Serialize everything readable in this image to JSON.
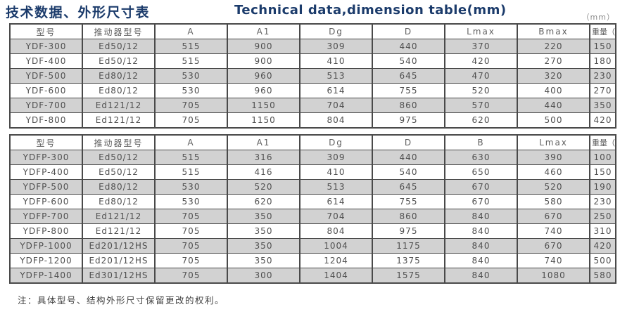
{
  "page": {
    "title_zh": "技术数据、外形尺寸表",
    "title_en": "Technical data,dimension table(mm)",
    "unit_note": "（mm）",
    "footer_note": "注：具体型号、结构外形尺寸保留更改的权利。"
  },
  "colors": {
    "title_navy": "#1b3b6b",
    "row_stripe": "#d2d2d2",
    "table_border": "#4a4a4a"
  },
  "table1": {
    "headers": [
      "型号",
      "推动器型号",
      "A",
      "A1",
      "Dg",
      "D",
      "Lmax",
      "Bmax",
      "重量（kg）"
    ],
    "rows": [
      [
        "YDF-300",
        "Ed50/12",
        "515",
        "900",
        "309",
        "440",
        "370",
        "220",
        "150"
      ],
      [
        "YDF-400",
        "Ed50/12",
        "515",
        "900",
        "410",
        "540",
        "420",
        "270",
        "180"
      ],
      [
        "YDF-500",
        "Ed80/12",
        "530",
        "960",
        "513",
        "645",
        "470",
        "320",
        "230"
      ],
      [
        "YDF-600",
        "Ed80/12",
        "530",
        "960",
        "614",
        "755",
        "520",
        "400",
        "270"
      ],
      [
        "YDF-700",
        "Ed121/12",
        "705",
        "1150",
        "704",
        "860",
        "570",
        "440",
        "350"
      ],
      [
        "YDF-800",
        "Ed121/12",
        "705",
        "1150",
        "804",
        "975",
        "620",
        "500",
        "420"
      ]
    ]
  },
  "table2": {
    "headers": [
      "型号",
      "推动器型号",
      "A",
      "A1",
      "Dg",
      "D",
      "B",
      "Lmax",
      "重量（kg）"
    ],
    "rows": [
      [
        "YDFP-300",
        "Ed50/12",
        "515",
        "316",
        "309",
        "440",
        "630",
        "390",
        "100"
      ],
      [
        "YDFP-400",
        "Ed50/12",
        "515",
        "416",
        "410",
        "540",
        "650",
        "460",
        "150"
      ],
      [
        "YDFP-500",
        "Ed80/12",
        "530",
        "520",
        "513",
        "645",
        "670",
        "520",
        "190"
      ],
      [
        "YDFP-600",
        "Ed80/12",
        "530",
        "620",
        "614",
        "755",
        "670",
        "580",
        "230"
      ],
      [
        "YDFP-700",
        "Ed121/12",
        "705",
        "350",
        "704",
        "860",
        "840",
        "670",
        "250"
      ],
      [
        "YDFP-800",
        "Ed121/12",
        "705",
        "350",
        "804",
        "975",
        "840",
        "740",
        "310"
      ],
      [
        "YDFP-1000",
        "Ed201/12HS",
        "705",
        "350",
        "1004",
        "1175",
        "840",
        "670",
        "420"
      ],
      [
        "YDFP-1200",
        "Ed201/12HS",
        "705",
        "350",
        "1204",
        "1375",
        "840",
        "740",
        "500"
      ],
      [
        "YDFP-1400",
        "Ed301/12HS",
        "705",
        "300",
        "1404",
        "1575",
        "840",
        "1080",
        "580"
      ]
    ]
  }
}
